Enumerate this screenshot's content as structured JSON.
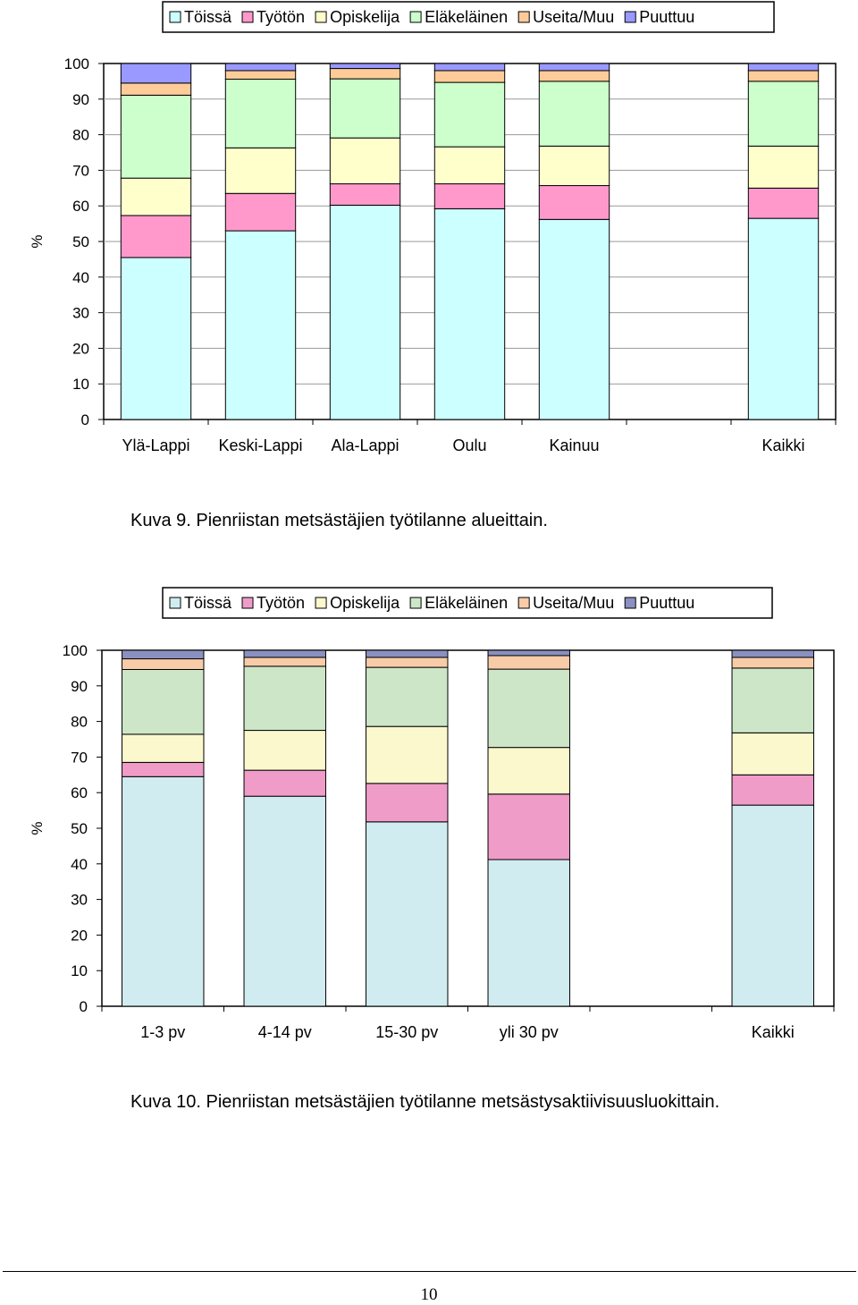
{
  "chart_data": [
    {
      "type": "bar",
      "stacked": true,
      "ylabel": "%",
      "ylim": [
        0,
        100
      ],
      "yticks": [
        0,
        10,
        20,
        30,
        40,
        50,
        60,
        70,
        80,
        90,
        100
      ],
      "grid": true,
      "legend_position": "top",
      "categories": [
        "Ylä-Lappi",
        "Keski-Lappi",
        "Ala-Lappi",
        "Oulu",
        "Kainuu",
        "",
        "Kaikki"
      ],
      "series": [
        {
          "name": "Töissä",
          "color": "#CCFFFF",
          "values": [
            45.5,
            53,
            60.2,
            59.2,
            56.2,
            null,
            56.5
          ]
        },
        {
          "name": "Työtön",
          "color": "#FF99CC",
          "values": [
            11.8,
            10.5,
            6,
            7,
            9.5,
            null,
            8.5
          ]
        },
        {
          "name": "Opiskelija",
          "color": "#FFFFCC",
          "values": [
            10.5,
            12.8,
            12.9,
            10.4,
            11.1,
            null,
            11.8
          ]
        },
        {
          "name": "Eläkeläinen",
          "color": "#CCFFCC",
          "values": [
            23.3,
            19.3,
            16.6,
            18.1,
            18.2,
            null,
            18.2
          ]
        },
        {
          "name": "Useita/Muu",
          "color": "#FFCC99",
          "values": [
            3.4,
            2.4,
            2.9,
            3.3,
            3,
            null,
            3
          ]
        },
        {
          "name": "Puuttuu",
          "color": "#9999FF",
          "values": [
            5.5,
            2,
            1.4,
            2,
            2,
            null,
            2
          ]
        }
      ]
    },
    {
      "type": "bar",
      "stacked": true,
      "ylabel": "%",
      "ylim": [
        0,
        100
      ],
      "yticks": [
        0,
        10,
        20,
        30,
        40,
        50,
        60,
        70,
        80,
        90,
        100
      ],
      "grid": false,
      "legend_position": "top",
      "categories": [
        "1-3 pv",
        "4-14 pv",
        "15-30 pv",
        "yli 30 pv",
        "",
        "Kaikki"
      ],
      "series": [
        {
          "name": "Töissä",
          "color": "#D0ECF0",
          "values": [
            64.5,
            59,
            51.8,
            41.2,
            null,
            56.5
          ]
        },
        {
          "name": "Työtön",
          "color": "#F09CC8",
          "values": [
            4,
            7.3,
            10.8,
            18.4,
            null,
            8.5
          ]
        },
        {
          "name": "Opiskelija",
          "color": "#FAF8CC",
          "values": [
            7.9,
            11.2,
            16,
            13.1,
            null,
            11.8
          ]
        },
        {
          "name": "Eläkeläinen",
          "color": "#CDE6C8",
          "values": [
            18.2,
            18,
            16.6,
            22,
            null,
            18.2
          ]
        },
        {
          "name": "Useita/Muu",
          "color": "#F8CCA8",
          "values": [
            3,
            2.5,
            2.8,
            3.8,
            null,
            3
          ]
        },
        {
          "name": "Puuttuu",
          "color": "#8A90C0",
          "values": [
            2.4,
            2,
            2,
            1.5,
            null,
            2
          ]
        }
      ]
    }
  ],
  "captions": {
    "figure9": "Kuva 9. Pienriistan metsästäjien työtilanne alueittain.",
    "figure10": "Kuva 10. Pienriistan metsästäjien työtilanne metsästysaktiivisuusluokittain."
  },
  "page_number": "10"
}
